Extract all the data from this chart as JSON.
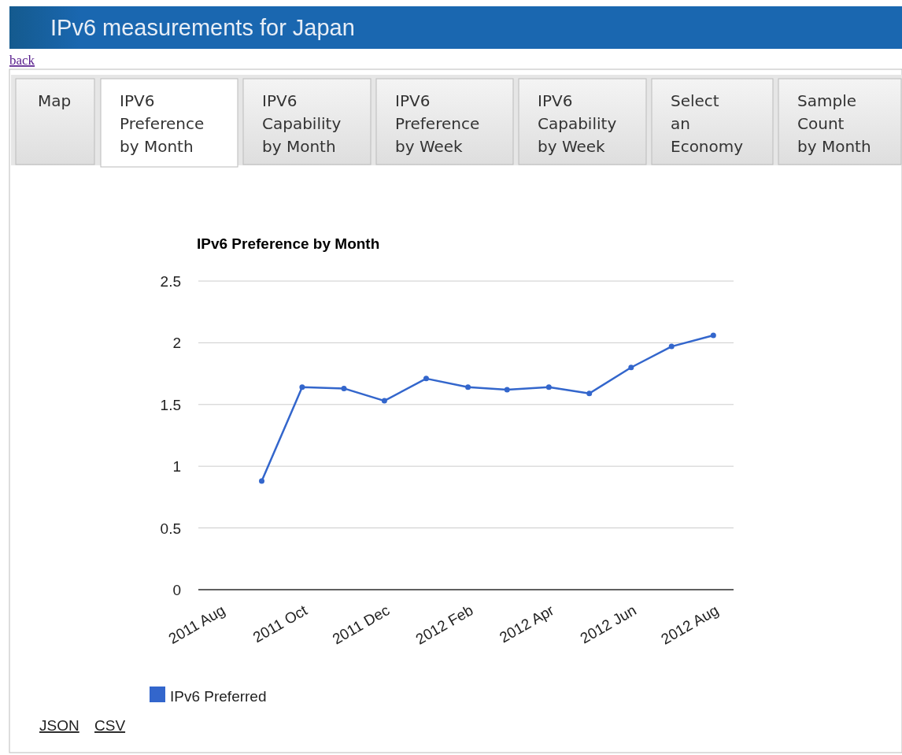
{
  "chart_data": {
    "type": "line",
    "title": "IPv6 Preference by Month",
    "x": [
      "2011-09-01",
      "2011-10-01",
      "2011-11-01",
      "2011-12-01",
      "2012-01-01",
      "2012-02-01",
      "2012-03-01",
      "2012-04-01",
      "2012-05-01",
      "2012-06-01",
      "2012-07-01",
      "2012-08-01"
    ],
    "series": [
      {
        "name": "IPv6 Preferred",
        "color": "#3366cc",
        "values": [
          0.88,
          1.64,
          1.63,
          1.53,
          1.71,
          1.64,
          1.62,
          1.64,
          1.59,
          1.8,
          1.97,
          2.06
        ]
      }
    ],
    "xlim": [
      "2011-07-16",
      "2012-08-16"
    ],
    "xticks": [
      {
        "value": "2011-08-01",
        "label": "2011 Aug"
      },
      {
        "value": "2011-10-01",
        "label": "2011 Oct"
      },
      {
        "value": "2011-12-01",
        "label": "2011 Dec"
      },
      {
        "value": "2012-02-01",
        "label": "2012 Feb"
      },
      {
        "value": "2012-04-01",
        "label": "2012 Apr"
      },
      {
        "value": "2012-06-01",
        "label": "2012 Jun"
      },
      {
        "value": "2012-08-01",
        "label": "2012 Aug"
      }
    ],
    "ylim": [
      0,
      2.5
    ],
    "yticks": [
      0,
      0.5,
      1,
      1.5,
      2,
      2.5
    ],
    "grid": "y",
    "legend": "bottom",
    "marker": "circle",
    "line_style": "solid",
    "annotations": [
      "IPv6 measurements for Japan",
      "back",
      "Map",
      "IPV6\nPreference\nby Month",
      "IPV6\nCapability\nby Month",
      "IPV6\nPreference\nby Week",
      "IPV6\nCapability\nby Week",
      "Select\nan\nEconomy",
      "Sample\nCount\nby Month",
      "JSON",
      "CSV"
    ]
  }
}
